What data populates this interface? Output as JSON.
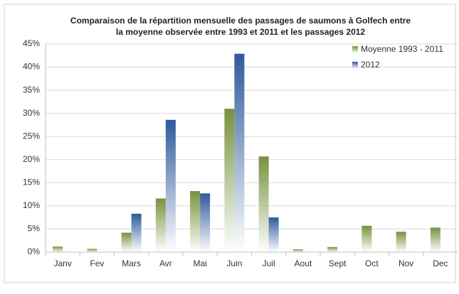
{
  "chart_data": {
    "type": "bar",
    "title": [
      "Comparaison de la répartition mensuelle des passages de saumons à Golfech entre",
      "la moyenne observée entre 1993 et 2011 et les passages 2012"
    ],
    "categories": [
      "Janv",
      "Fev",
      "Mars",
      "Avr",
      "Mai",
      "Juin",
      "Juil",
      "Aout",
      "Sept",
      "Oct",
      "Nov",
      "Dec"
    ],
    "series": [
      {
        "name": "Moyenne 1993 - 2011",
        "color": "#76923c",
        "values": [
          1.2,
          0.7,
          4.2,
          11.6,
          13.2,
          31,
          20.7,
          0.6,
          1.1,
          5.7,
          4.4,
          5.3
        ]
      },
      {
        "name": "2012",
        "color": "#2e5a9c",
        "values": [
          0,
          0,
          8.3,
          28.6,
          12.7,
          42.9,
          7.5,
          0,
          0,
          0,
          0,
          0
        ]
      }
    ],
    "ylim": [
      0,
      45
    ],
    "yticks": [
      {
        "value": 0,
        "label": "0%"
      },
      {
        "value": 5,
        "label": "5%"
      },
      {
        "value": 10,
        "label": "10%"
      },
      {
        "value": 15,
        "label": "15%"
      },
      {
        "value": 20,
        "label": "20%"
      },
      {
        "value": 25,
        "label": "25%"
      },
      {
        "value": 30,
        "label": "30%"
      },
      {
        "value": 35,
        "label": "35%"
      },
      {
        "value": 40,
        "label": "40%"
      },
      {
        "value": 45,
        "label": "45%"
      }
    ],
    "grid": true,
    "legend": "top-right"
  }
}
